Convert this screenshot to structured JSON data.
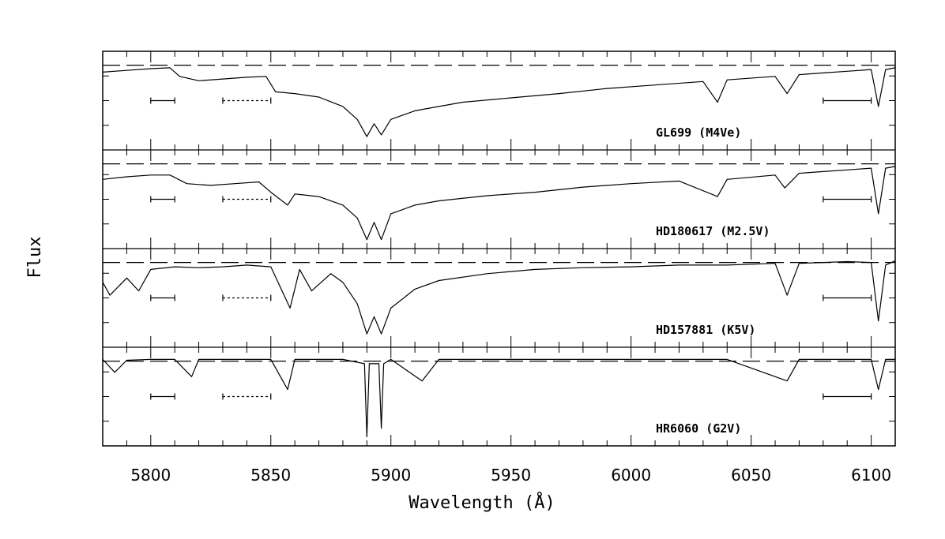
{
  "chart_data": {
    "type": "line",
    "xlabel": "Wavelength (Å)",
    "ylabel": "Flux",
    "xlim": [
      5780,
      6110
    ],
    "xticks": [
      5800,
      5850,
      5900,
      5950,
      6000,
      6050,
      6100
    ],
    "xtick_labels": [
      "5800",
      "5850",
      "5900",
      "5950",
      "6000",
      "6050",
      "6100"
    ],
    "series": [
      {
        "name": "GL699 (M4Ve)",
        "x": [
          5780,
          5790,
          5800,
          5808,
          5812,
          5820,
          5830,
          5840,
          5848,
          5852,
          5860,
          5870,
          5880,
          5886,
          5890,
          5893,
          5896,
          5900,
          5910,
          5920,
          5930,
          5950,
          5970,
          5990,
          6010,
          6030,
          6036,
          6040,
          6060,
          6065,
          6070,
          6080,
          6090,
          6100,
          6103,
          6106,
          6110
        ],
        "y": [
          0.85,
          0.87,
          0.89,
          0.9,
          0.8,
          0.75,
          0.77,
          0.79,
          0.8,
          0.62,
          0.6,
          0.56,
          0.45,
          0.3,
          0.1,
          0.25,
          0.12,
          0.3,
          0.4,
          0.45,
          0.5,
          0.55,
          0.6,
          0.66,
          0.7,
          0.74,
          0.5,
          0.76,
          0.8,
          0.6,
          0.82,
          0.84,
          0.86,
          0.88,
          0.45,
          0.88,
          0.9
        ]
      },
      {
        "name": "HD180617 (M2.5V)",
        "x": [
          5780,
          5790,
          5800,
          5808,
          5815,
          5825,
          5835,
          5845,
          5850,
          5857,
          5860,
          5870,
          5880,
          5886,
          5890,
          5893,
          5896,
          5900,
          5910,
          5920,
          5940,
          5960,
          5980,
          6000,
          6020,
          6036,
          6040,
          6060,
          6064,
          6070,
          6080,
          6090,
          6100,
          6103,
          6106,
          6110
        ],
        "y": [
          0.75,
          0.78,
          0.8,
          0.8,
          0.7,
          0.68,
          0.7,
          0.72,
          0.6,
          0.45,
          0.58,
          0.55,
          0.45,
          0.3,
          0.05,
          0.25,
          0.05,
          0.35,
          0.45,
          0.5,
          0.56,
          0.6,
          0.66,
          0.7,
          0.73,
          0.55,
          0.75,
          0.8,
          0.65,
          0.82,
          0.84,
          0.86,
          0.88,
          0.35,
          0.88,
          0.9
        ]
      },
      {
        "name": "HD157881 (K5V)",
        "x": [
          5780,
          5783,
          5790,
          5795,
          5800,
          5810,
          5820,
          5830,
          5840,
          5850,
          5858,
          5862,
          5867,
          5875,
          5880,
          5886,
          5890,
          5893,
          5896,
          5900,
          5910,
          5920,
          5940,
          5960,
          5980,
          6000,
          6020,
          6040,
          6060,
          6065,
          6070,
          6080,
          6090,
          6100,
          6103,
          6106,
          6110
        ],
        "y": [
          0.7,
          0.55,
          0.75,
          0.6,
          0.85,
          0.88,
          0.87,
          0.88,
          0.9,
          0.88,
          0.4,
          0.85,
          0.6,
          0.8,
          0.7,
          0.45,
          0.1,
          0.3,
          0.1,
          0.4,
          0.62,
          0.72,
          0.8,
          0.85,
          0.87,
          0.88,
          0.9,
          0.9,
          0.92,
          0.55,
          0.92,
          0.93,
          0.94,
          0.93,
          0.25,
          0.9,
          0.95
        ]
      },
      {
        "name": "HR6060 (G2V)",
        "x": [
          5780,
          5785,
          5790,
          5800,
          5810,
          5817,
          5820,
          5830,
          5840,
          5850,
          5857,
          5860,
          5870,
          5880,
          5889,
          5890,
          5891,
          5895,
          5896,
          5897,
          5900,
          5913,
          5920,
          5940,
          5960,
          5980,
          6000,
          6020,
          6040,
          6065,
          6070,
          6090,
          6100,
          6103,
          6106,
          6110
        ],
        "y": [
          0.95,
          0.8,
          0.94,
          0.95,
          0.95,
          0.75,
          0.95,
          0.95,
          0.95,
          0.95,
          0.6,
          0.95,
          0.95,
          0.95,
          0.9,
          0.05,
          0.9,
          0.9,
          0.15,
          0.9,
          0.95,
          0.7,
          0.95,
          0.95,
          0.95,
          0.95,
          0.95,
          0.95,
          0.95,
          0.7,
          0.95,
          0.95,
          0.95,
          0.6,
          0.95,
          0.95
        ]
      }
    ],
    "continuum_level": 0.93,
    "bandpass_markers": [
      {
        "x1": 5800,
        "x2": 5810,
        "style": "solid"
      },
      {
        "x1": 5830,
        "x2": 5850,
        "style": "dotted"
      },
      {
        "x1": 6080,
        "x2": 6100,
        "style": "solid"
      }
    ],
    "panels": 4,
    "grid": false,
    "legend": "none"
  }
}
